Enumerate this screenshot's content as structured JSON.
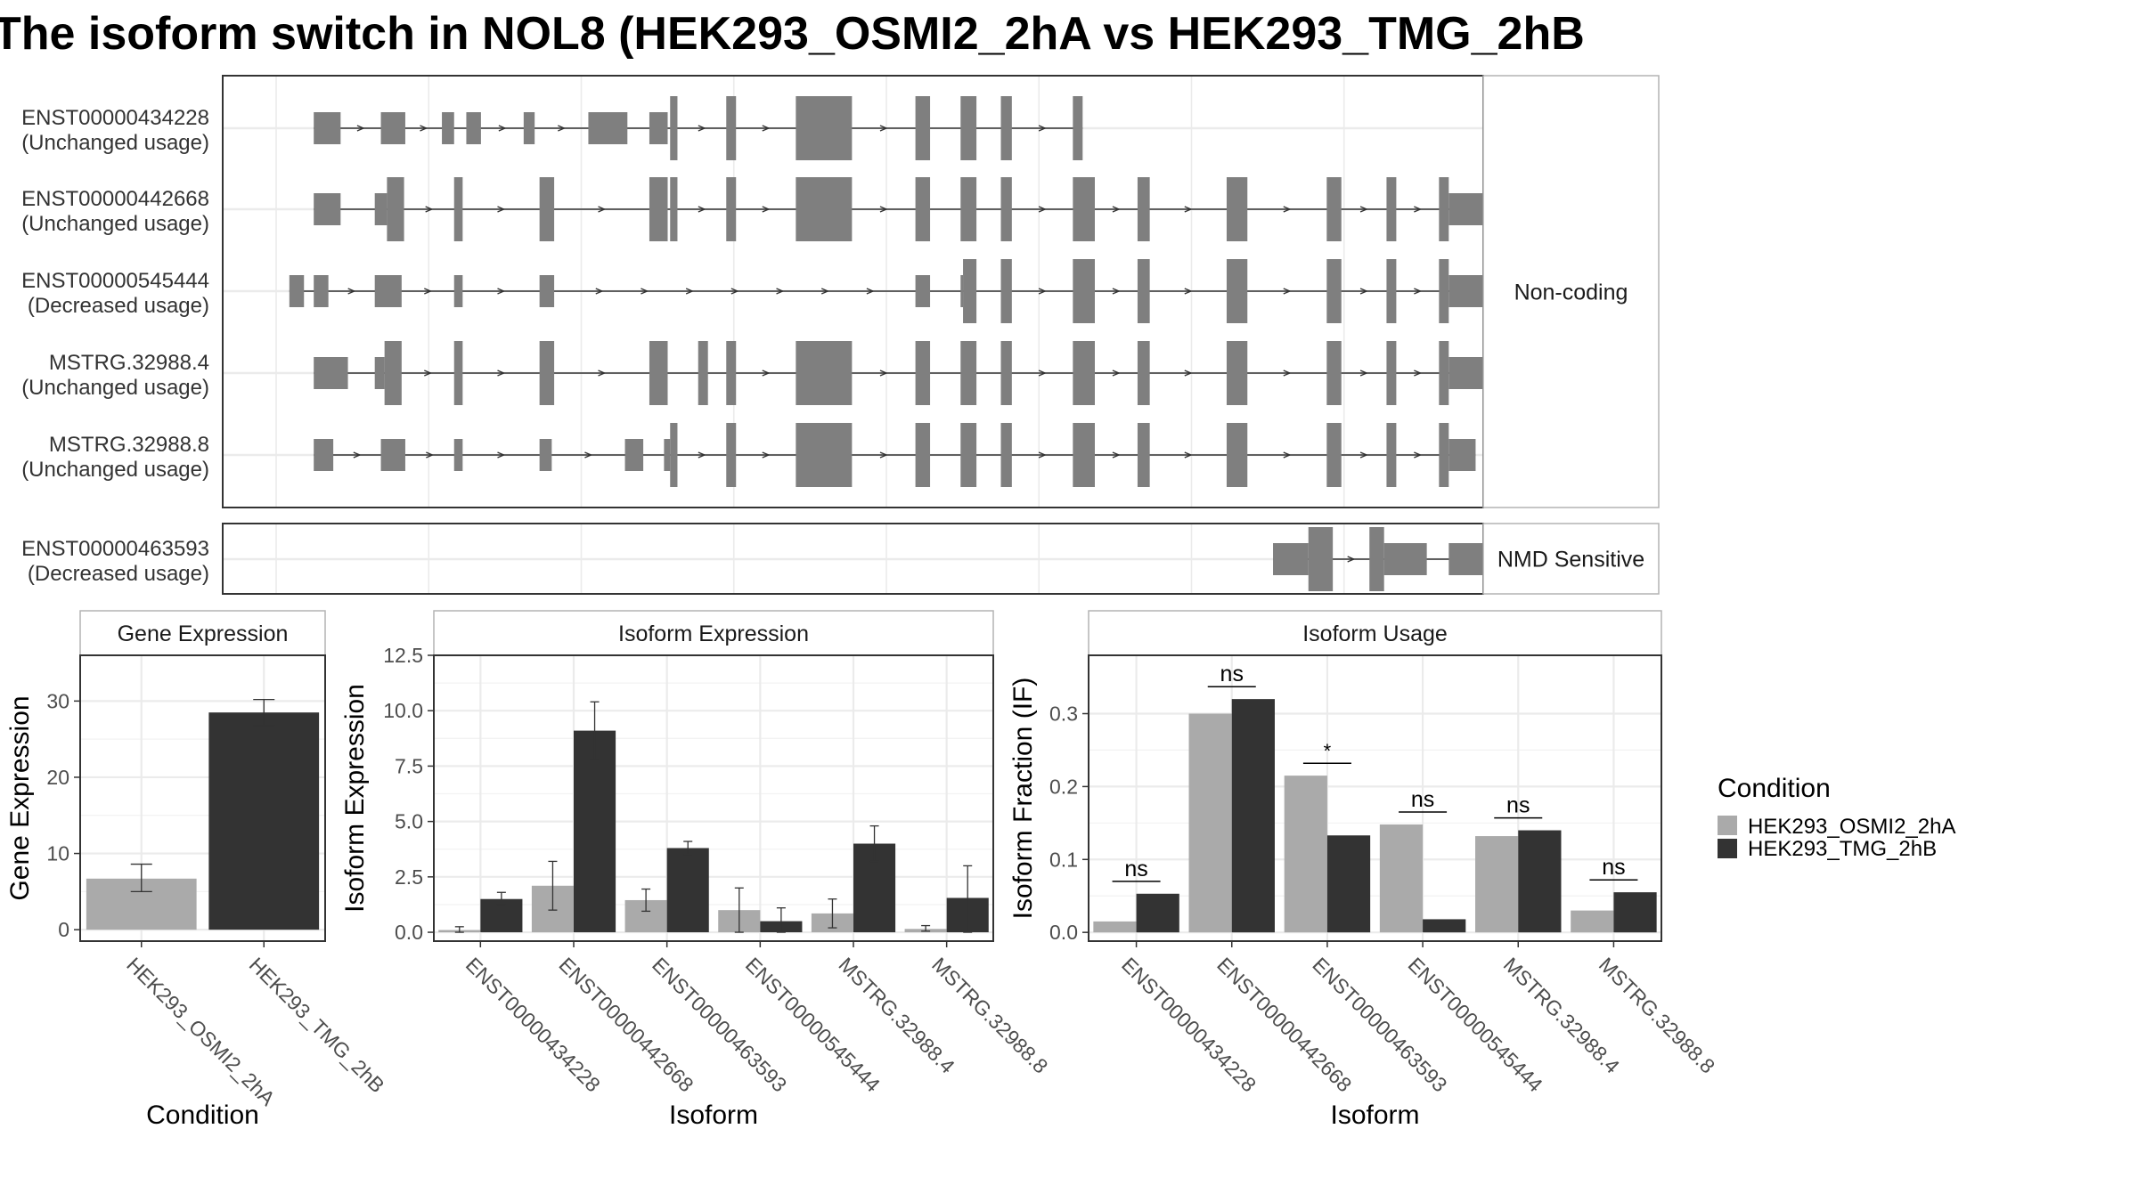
{
  "title": "The isoform switch in NOL8 (HEK293_OSMI2_2hA vs HEK293_TMG_2hB",
  "colors": {
    "condition_a": "#aaaaaa",
    "condition_b": "#333333",
    "exon": "#7f7f7f",
    "grid": "#ebebeb",
    "panel_border": "#333333",
    "strip_border": "#b3b3b3"
  },
  "structure_panel": {
    "genome_range": [
      0,
      1000
    ],
    "groups": [
      {
        "label": "Non-coding",
        "isoforms": [
          {
            "id": "ENST00000434228",
            "usage": "(Unchanged usage)",
            "exons": [
              [
                60,
                82,
                "n"
              ],
              [
                115,
                135,
                "n"
              ],
              [
                165,
                175,
                "n"
              ],
              [
                185,
                197,
                "n"
              ],
              [
                232,
                241,
                "n"
              ],
              [
                285,
                317,
                "n"
              ],
              [
                335,
                350,
                "n"
              ],
              [
                352,
                358,
                "t"
              ],
              [
                398,
                406,
                "t"
              ],
              [
                455,
                501,
                "t"
              ],
              [
                553,
                565,
                "t"
              ],
              [
                590,
                603,
                "t"
              ],
              [
                623,
                632,
                "t"
              ],
              [
                682,
                690,
                "t"
              ]
            ]
          },
          {
            "id": "ENST00000442668",
            "usage": "(Unchanged usage)",
            "exons": [
              [
                60,
                82,
                "n"
              ],
              [
                110,
                120,
                "n"
              ],
              [
                120,
                134,
                "t"
              ],
              [
                175,
                182,
                "t"
              ],
              [
                245,
                257,
                "t"
              ],
              [
                335,
                350,
                "t"
              ],
              [
                352,
                358,
                "t"
              ],
              [
                398,
                406,
                "t"
              ],
              [
                455,
                501,
                "t"
              ],
              [
                553,
                565,
                "t"
              ],
              [
                590,
                603,
                "t"
              ],
              [
                623,
                632,
                "t"
              ],
              [
                682,
                700,
                "t"
              ],
              [
                735,
                745,
                "t"
              ],
              [
                808,
                825,
                "t"
              ],
              [
                890,
                902,
                "t"
              ],
              [
                939,
                947,
                "t"
              ],
              [
                982,
                990,
                "t"
              ],
              [
                990,
                1040,
                "n"
              ]
            ]
          },
          {
            "id": "ENST00000545444",
            "usage": "(Decreased usage)",
            "exons": [
              [
                40,
                52,
                "n"
              ],
              [
                60,
                72,
                "n"
              ],
              [
                110,
                132,
                "n"
              ],
              [
                175,
                182,
                "n"
              ],
              [
                245,
                257,
                "n"
              ],
              [
                553,
                565,
                "n"
              ],
              [
                590,
                592,
                "n"
              ],
              [
                592,
                603,
                "t"
              ],
              [
                623,
                632,
                "t"
              ],
              [
                682,
                700,
                "t"
              ],
              [
                735,
                745,
                "t"
              ],
              [
                808,
                825,
                "t"
              ],
              [
                890,
                902,
                "t"
              ],
              [
                939,
                947,
                "t"
              ],
              [
                982,
                990,
                "t"
              ],
              [
                990,
                1032,
                "n"
              ]
            ]
          },
          {
            "id": "MSTRG.32988.4",
            "usage": "(Unchanged usage)",
            "exons": [
              [
                60,
                88,
                "n"
              ],
              [
                110,
                118,
                "n"
              ],
              [
                118,
                132,
                "t"
              ],
              [
                175,
                182,
                "t"
              ],
              [
                245,
                257,
                "t"
              ],
              [
                335,
                350,
                "t"
              ],
              [
                375,
                383,
                "t"
              ],
              [
                398,
                406,
                "t"
              ],
              [
                455,
                501,
                "t"
              ],
              [
                553,
                565,
                "t"
              ],
              [
                590,
                603,
                "t"
              ],
              [
                623,
                632,
                "t"
              ],
              [
                682,
                700,
                "t"
              ],
              [
                735,
                745,
                "t"
              ],
              [
                808,
                825,
                "t"
              ],
              [
                890,
                902,
                "t"
              ],
              [
                939,
                947,
                "t"
              ],
              [
                982,
                990,
                "t"
              ],
              [
                990,
                1024,
                "n"
              ]
            ]
          },
          {
            "id": "MSTRG.32988.8",
            "usage": "(Unchanged usage)",
            "exons": [
              [
                60,
                76,
                "n"
              ],
              [
                115,
                135,
                "n"
              ],
              [
                175,
                182,
                "n"
              ],
              [
                245,
                255,
                "n"
              ],
              [
                315,
                330,
                "n"
              ],
              [
                347,
                352,
                "n"
              ],
              [
                352,
                358,
                "t"
              ],
              [
                398,
                406,
                "t"
              ],
              [
                455,
                501,
                "t"
              ],
              [
                553,
                565,
                "t"
              ],
              [
                590,
                603,
                "t"
              ],
              [
                623,
                632,
                "t"
              ],
              [
                682,
                700,
                "t"
              ],
              [
                735,
                745,
                "t"
              ],
              [
                808,
                825,
                "t"
              ],
              [
                890,
                902,
                "t"
              ],
              [
                939,
                947,
                "t"
              ],
              [
                982,
                990,
                "t"
              ],
              [
                990,
                1012,
                "n"
              ]
            ]
          }
        ]
      },
      {
        "label": "NMD Sensitive",
        "isoforms": [
          {
            "id": "ENST00000463593",
            "usage": "(Decreased usage)",
            "exons": [
              [
                846,
                875,
                "n"
              ],
              [
                875,
                895,
                "t"
              ],
              [
                925,
                937,
                "t"
              ],
              [
                937,
                972,
                "n"
              ],
              [
                990,
                1024,
                "n"
              ]
            ]
          }
        ]
      }
    ]
  },
  "chart_data": [
    {
      "type": "bar",
      "title": "Gene Expression",
      "xlabel": "Condition",
      "ylabel": "Gene Expression",
      "ylim": [
        -1.5,
        36
      ],
      "yticks": [
        0,
        10,
        20,
        30
      ],
      "categories": [
        "HEK293_OSMI2_2hA",
        "HEK293_TMG_2hB"
      ],
      "values": [
        6.7,
        28.5
      ],
      "errors": [
        [
          5.0,
          8.6
        ],
        [
          26.8,
          30.2
        ]
      ],
      "grid": true
    },
    {
      "type": "bar",
      "title": "Isoform Expression",
      "xlabel": "Isoform",
      "ylabel": "Isoform Expression",
      "ylim": [
        -0.4,
        12.5
      ],
      "yticks": [
        0.0,
        2.5,
        5.0,
        7.5,
        10.0,
        12.5
      ],
      "ytick_labels": [
        "0.0",
        "2.5",
        "5.0",
        "7.5",
        "10.0",
        "12.5"
      ],
      "categories": [
        "ENST00000434228",
        "ENST00000442668",
        "ENST00000463593",
        "ENST00000545444",
        "MSTRG.32988.4",
        "MSTRG.32988.8"
      ],
      "series": [
        {
          "name": "HEK293_OSMI2_2hA",
          "values": [
            0.1,
            2.1,
            1.45,
            1.0,
            0.85,
            0.15
          ],
          "errors": [
            [
              0.0,
              0.25
            ],
            [
              1.0,
              3.2
            ],
            [
              0.95,
              1.95
            ],
            [
              0.0,
              2.0
            ],
            [
              0.2,
              1.5
            ],
            [
              0.05,
              0.3
            ]
          ]
        },
        {
          "name": "HEK293_TMG_2hB",
          "values": [
            1.5,
            9.1,
            3.8,
            0.5,
            4.0,
            1.55
          ],
          "errors": [
            [
              1.25,
              1.8
            ],
            [
              7.8,
              10.4
            ],
            [
              3.5,
              4.1
            ],
            [
              0.0,
              1.1
            ],
            [
              3.2,
              4.8
            ],
            [
              0.0,
              3.0
            ]
          ]
        }
      ],
      "grid": true
    },
    {
      "type": "bar",
      "title": "Isoform Usage",
      "xlabel": "Isoform",
      "ylabel": "Isoform Fraction (IF)",
      "ylim": [
        -0.012,
        0.38
      ],
      "yticks": [
        0.0,
        0.1,
        0.2,
        0.3
      ],
      "ytick_labels": [
        "0.0",
        "0.1",
        "0.2",
        "0.3"
      ],
      "categories": [
        "ENST00000434228",
        "ENST00000442668",
        "ENST00000463593",
        "ENST00000545444",
        "MSTRG.32988.4",
        "MSTRG.32988.8"
      ],
      "series": [
        {
          "name": "HEK293_OSMI2_2hA",
          "values": [
            0.015,
            0.3,
            0.215,
            0.148,
            0.132,
            0.03
          ]
        },
        {
          "name": "HEK293_TMG_2hB",
          "values": [
            0.053,
            0.32,
            0.133,
            0.018,
            0.14,
            0.055
          ]
        }
      ],
      "significance": [
        {
          "label": "ns",
          "y": 0.07
        },
        {
          "label": "ns",
          "y": 0.337
        },
        {
          "label": "*",
          "y": 0.232
        },
        {
          "label": "ns",
          "y": 0.165
        },
        {
          "label": "ns",
          "y": 0.157
        },
        {
          "label": "ns",
          "y": 0.072
        }
      ],
      "grid": true
    }
  ],
  "legend": {
    "title": "Condition",
    "items": [
      {
        "label": "HEK293_OSMI2_2hA",
        "color": "#aaaaaa"
      },
      {
        "label": "HEK293_TMG_2hB",
        "color": "#333333"
      }
    ]
  }
}
